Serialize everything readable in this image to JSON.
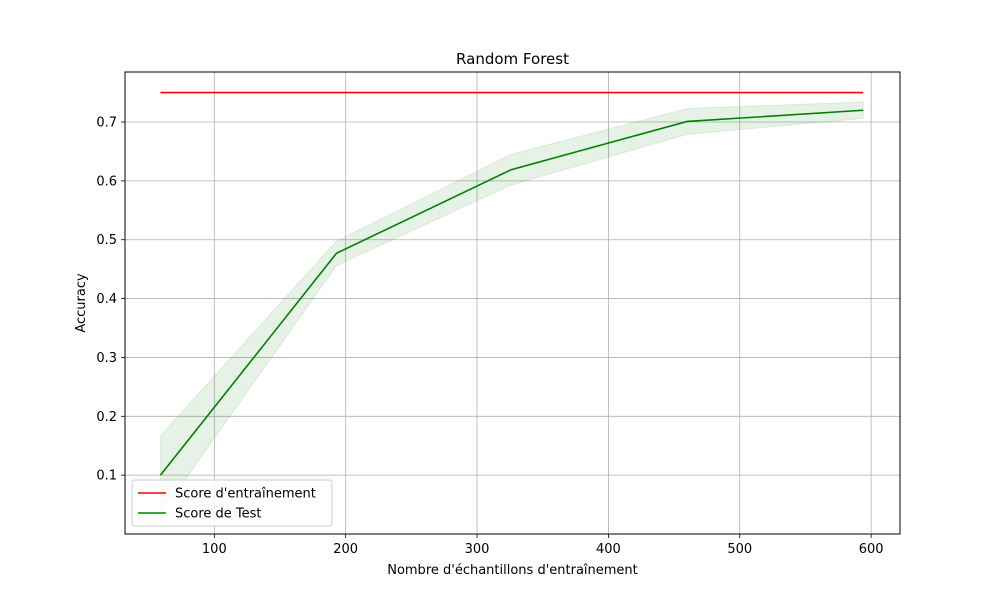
{
  "chart_data": {
    "type": "line",
    "title": "Random Forest",
    "xlabel": "Nombre d'échantillons d'entraînement",
    "ylabel": "Accuracy",
    "xlim": [
      32,
      622
    ],
    "ylim": [
      0.0,
      0.785
    ],
    "xticks": [
      100,
      200,
      300,
      400,
      500,
      600
    ],
    "yticks": [
      0.1,
      0.2,
      0.3,
      0.4,
      0.5,
      0.6,
      0.7
    ],
    "grid": true,
    "legend_position": "lower-left",
    "x": [
      59,
      193,
      326,
      460,
      594
    ],
    "series": [
      {
        "name": "Score d'entraînement",
        "color": "#ff0000",
        "values": [
          0.75,
          0.75,
          0.75,
          0.75,
          0.75
        ]
      },
      {
        "name": "Score de Test",
        "color": "#008000",
        "values": [
          0.1,
          0.477,
          0.619,
          0.701,
          0.72
        ],
        "band_lower": [
          0.033,
          0.456,
          0.593,
          0.679,
          0.706
        ],
        "band_upper": [
          0.167,
          0.498,
          0.645,
          0.723,
          0.734
        ],
        "band_color": "#008000"
      }
    ]
  }
}
